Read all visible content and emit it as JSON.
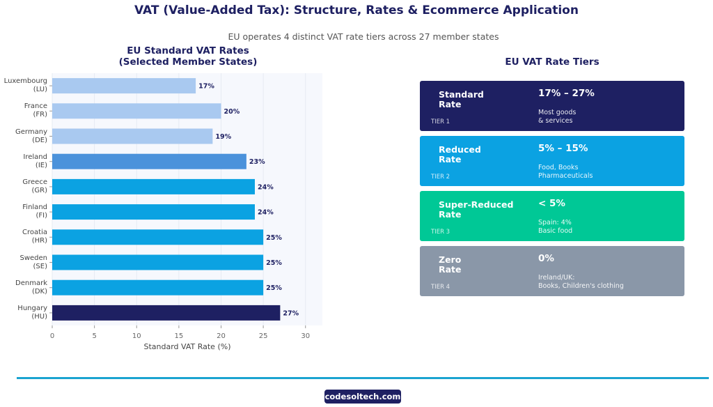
{
  "title": "VAT (Value-Added Tax): Structure, Rates & Ecommerce Application",
  "subtitle": "EU operates 4 distinct VAT rate tiers across 27 member states",
  "chart_data": {
    "type": "bar",
    "orientation": "horizontal",
    "title": "EU Standard VAT Rates\n(Selected Member States)",
    "categories": [
      "Luxembourg\n(LU)",
      "France\n(FR)",
      "Germany\n(DE)",
      "Ireland\n(IE)",
      "Greece\n(GR)",
      "Finland\n(FI)",
      "Croatia\n(HR)",
      "Sweden\n(SE)",
      "Denmark\n(DK)",
      "Hungary\n(HU)"
    ],
    "values": [
      17,
      20,
      19,
      23,
      24,
      24,
      25,
      25,
      25,
      27
    ],
    "value_labels": [
      "17%",
      "20%",
      "19%",
      "23%",
      "24%",
      "24%",
      "25%",
      "25%",
      "25%",
      "27%"
    ],
    "colors": [
      "#a9c9f0",
      "#a9c9f0",
      "#a9c9f0",
      "#4b92db",
      "#0ba2e2",
      "#0ba2e2",
      "#0ba2e2",
      "#0ba2e2",
      "#0ba2e2",
      "#1e2062"
    ],
    "xlabel": "Standard VAT Rate (%)",
    "xlim": [
      0,
      32
    ],
    "xticks": [
      0,
      5,
      10,
      15,
      20,
      25,
      30
    ],
    "grid": true
  },
  "tiers": {
    "title": "EU VAT Rate Tiers",
    "cards": [
      {
        "name": "Standard\nRate",
        "tier": "TIER 1",
        "rate": "17% – 27%",
        "desc": "Most goods\n& services",
        "color": "#1e2062"
      },
      {
        "name": "Reduced\nRate",
        "tier": "TIER 2",
        "rate": "5% – 15%",
        "desc": "Food, Books\nPharmaceuticals",
        "color": "#0ba2e2"
      },
      {
        "name": "Super-Reduced\nRate",
        "tier": "TIER 3",
        "rate": "< 5%",
        "desc": "Spain: 4%\nBasic food",
        "color": "#00c896"
      },
      {
        "name": "Zero\nRate",
        "tier": "TIER 4",
        "rate": "0%",
        "desc": "Ireland/UK:\nBooks, Children's clothing",
        "color": "#8a97a8"
      }
    ]
  },
  "footer": {
    "brand": "codesoltech.com"
  }
}
